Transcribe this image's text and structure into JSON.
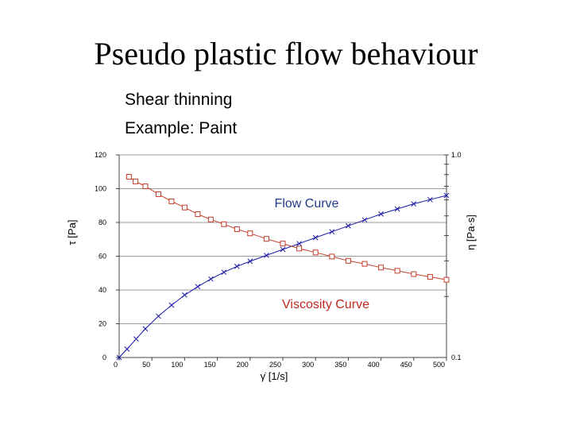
{
  "title": "Pseudo plastic flow behaviour",
  "bullets": [
    "Shear thinning",
    "Example: Paint"
  ],
  "chart_data": {
    "type": "line",
    "xlabel": "γ̇ [1/s]",
    "ylabel_left": "τ [Pa]",
    "ylabel_right": "η [Pa·s]",
    "xlim": [
      0,
      500
    ],
    "ylim_left": [
      0,
      120
    ],
    "ylim_right": [
      0.1,
      1.0
    ],
    "y_right_scale": "log",
    "x_ticks": [
      0,
      50,
      100,
      150,
      200,
      250,
      300,
      350,
      400,
      450,
      500
    ],
    "y_left_ticks": [
      0,
      20,
      40,
      60,
      80,
      100,
      120
    ],
    "y_right_ticks": [
      0.1,
      1.0
    ],
    "y_right_tick_labels": [
      "0.1",
      "1.0"
    ],
    "grid": "horizontal",
    "annotations": {
      "flow": "Flow Curve",
      "viscosity": "Viscosity Curve"
    },
    "series": [
      {
        "axis": "left",
        "marker": "x",
        "color": "#1a1aa6",
        "x": [
          0,
          12,
          26,
          40,
          60,
          80,
          100,
          120,
          140,
          160,
          180,
          200,
          225,
          250,
          275,
          300,
          325,
          350,
          375,
          400,
          425,
          450,
          475,
          500
        ],
        "values": [
          0,
          5,
          11,
          17,
          24.5,
          31,
          37,
          42,
          46.5,
          50.5,
          54,
          57,
          60.5,
          64,
          67.5,
          71,
          74.5,
          78,
          81.5,
          85,
          88,
          91,
          93.5,
          96
        ]
      },
      {
        "axis": "right",
        "marker": "square",
        "color": "#c43c2c",
        "x": [
          15,
          25,
          40,
          60,
          80,
          100,
          120,
          140,
          160,
          180,
          200,
          225,
          250,
          275,
          300,
          325,
          350,
          375,
          400,
          425,
          450,
          475,
          500
        ],
        "values": [
          0.78,
          0.74,
          0.7,
          0.64,
          0.59,
          0.55,
          0.51,
          0.48,
          0.455,
          0.43,
          0.41,
          0.385,
          0.365,
          0.345,
          0.33,
          0.315,
          0.3,
          0.29,
          0.278,
          0.268,
          0.258,
          0.25,
          0.242
        ]
      }
    ]
  }
}
